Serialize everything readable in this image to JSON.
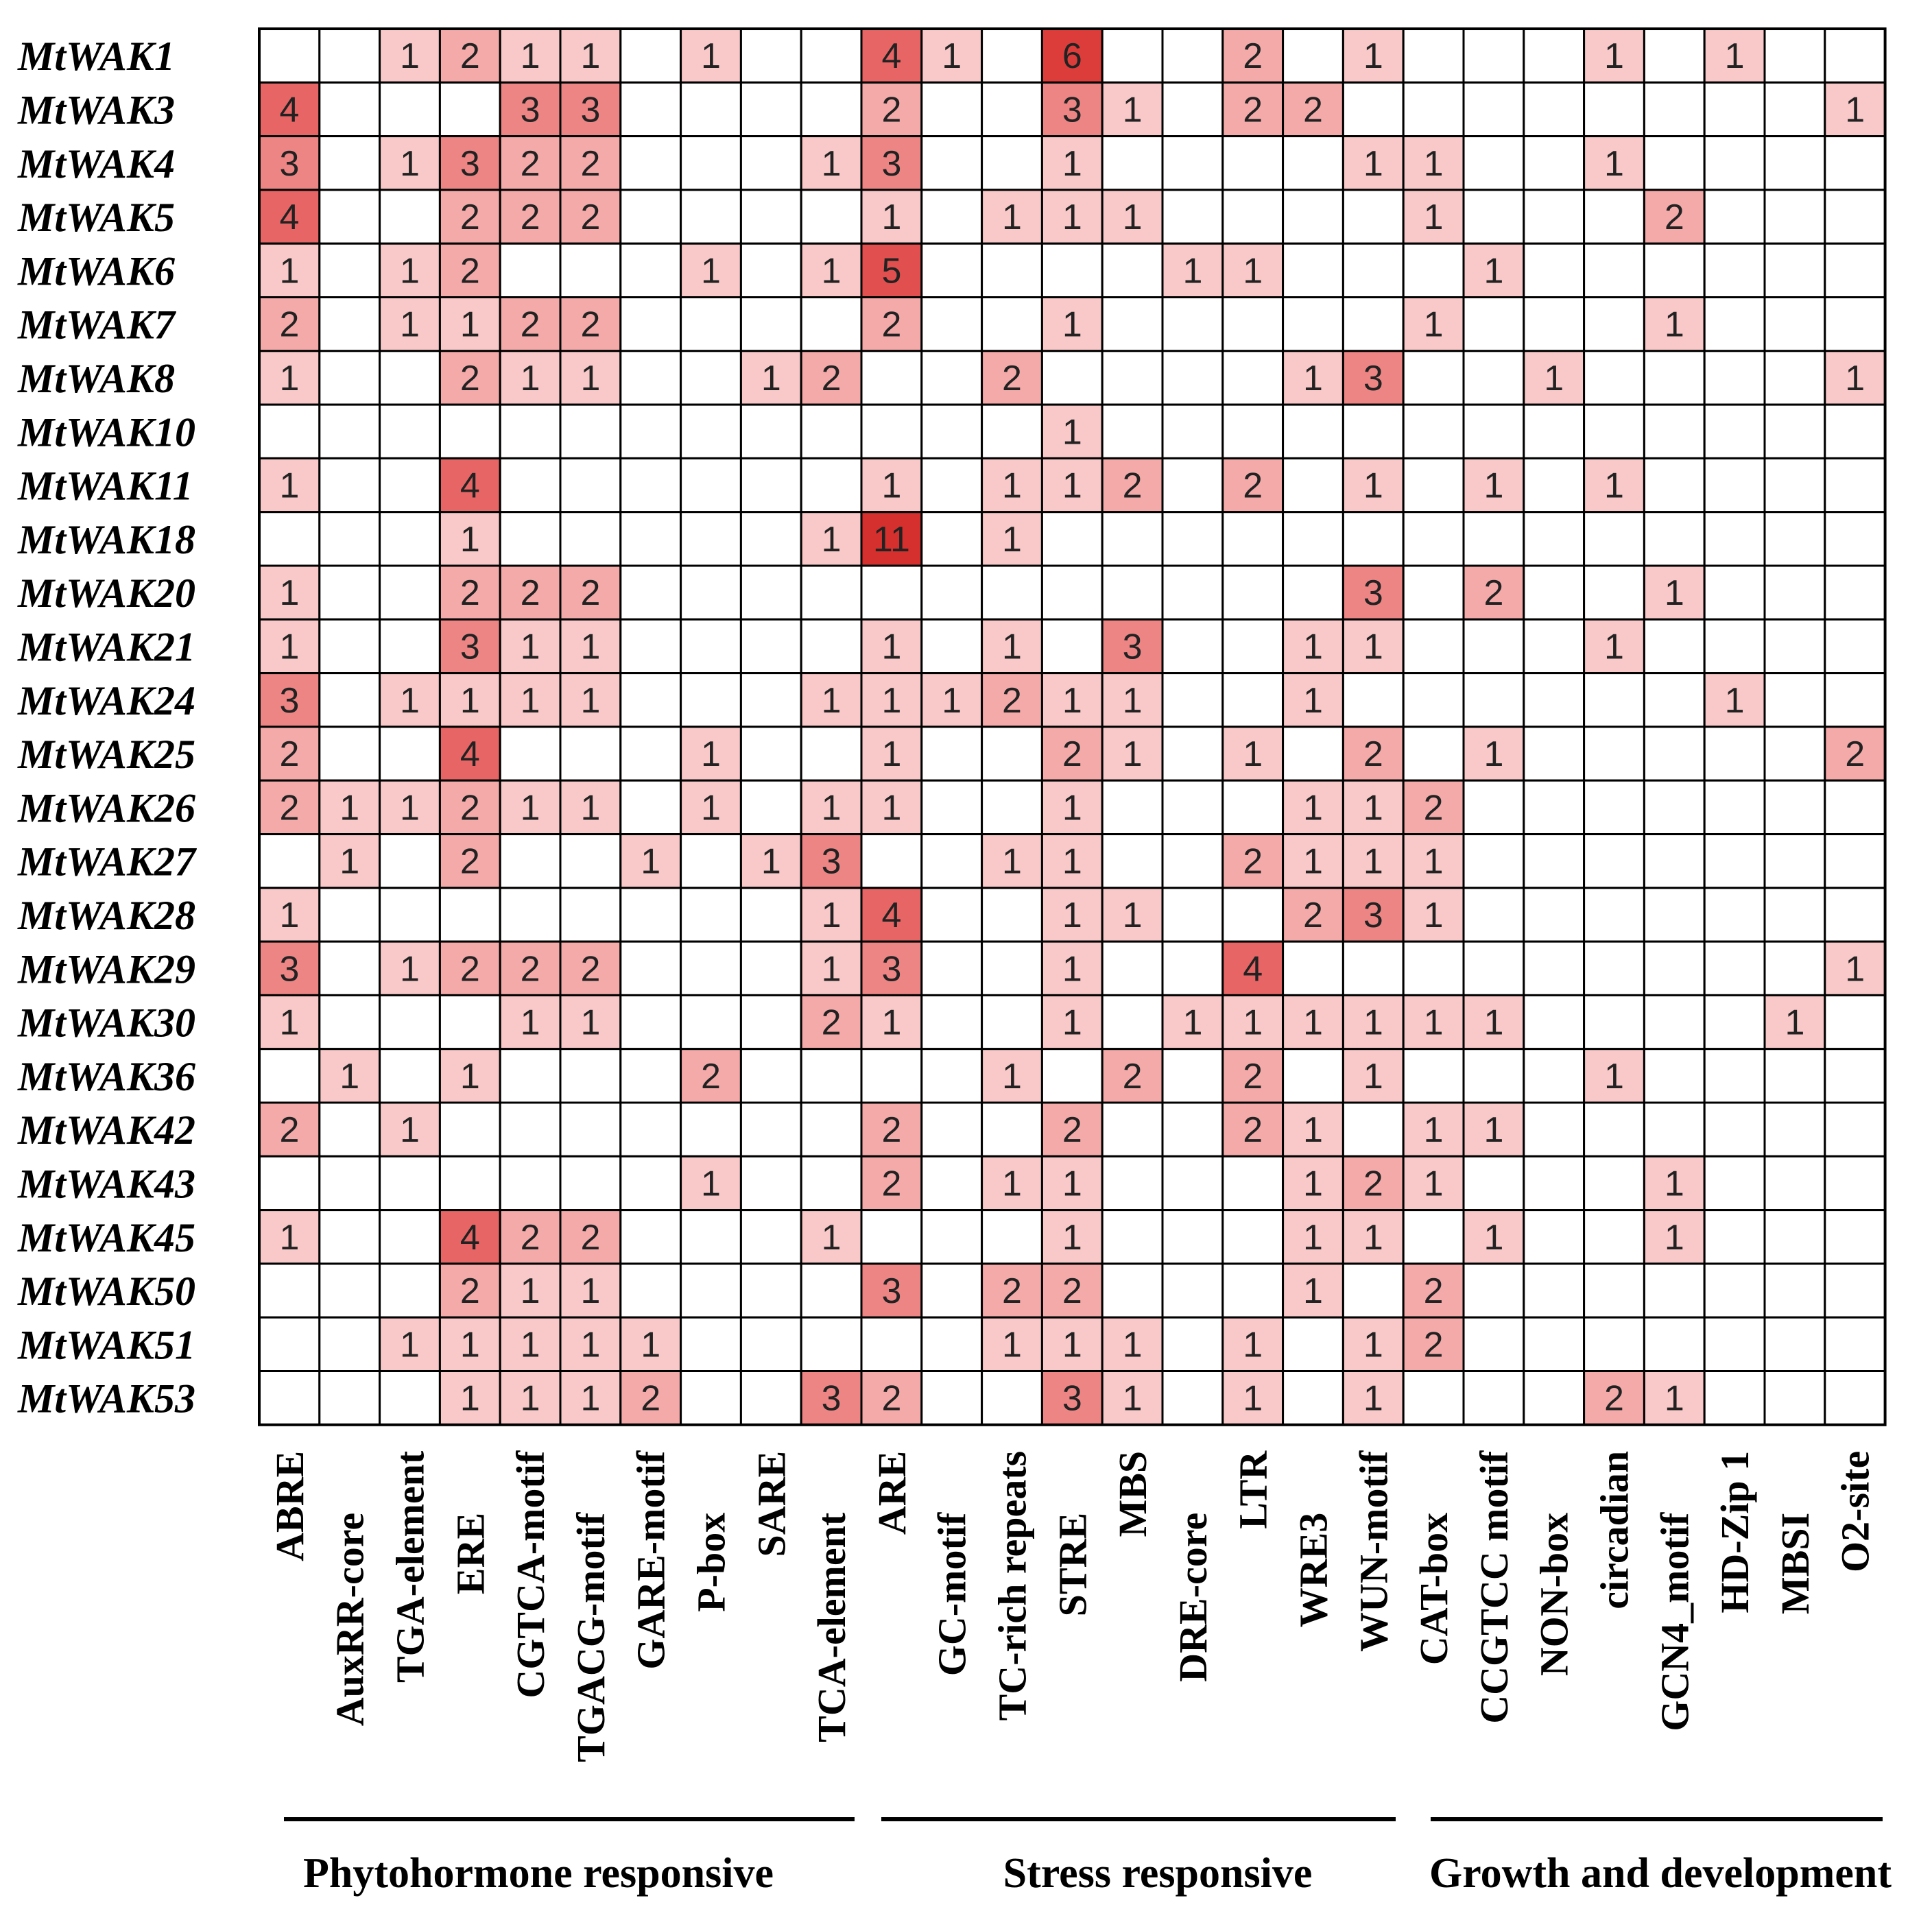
{
  "chart_data": {
    "type": "heatmap",
    "title": "",
    "xlabel": "",
    "ylabel": "",
    "rows": [
      "MtWAK1",
      "MtWAK3",
      "MtWAK4",
      "MtWAK5",
      "MtWAK6",
      "MtWAK7",
      "MtWAK8",
      "MtWAK10",
      "MtWAK11",
      "MtWAK18",
      "MtWAK20",
      "MtWAK21",
      "MtWAK24",
      "MtWAK25",
      "MtWAK26",
      "MtWAK27",
      "MtWAK28",
      "MtWAK29",
      "MtWAK30",
      "MtWAK36",
      "MtWAK42",
      "MtWAK43",
      "MtWAK45",
      "MtWAK50",
      "MtWAK51",
      "MtWAK53"
    ],
    "columns": [
      "ABRE",
      "AuxRR-core",
      "TGA-element",
      "ERE",
      "CGTCA-motif",
      "TGACG-motif",
      "GARE-motif",
      "P-box",
      "SARE",
      "TCA-element",
      "ARE",
      "GC-motif",
      "TC-rich repeats",
      "STRE",
      "MBS",
      "DRE-core",
      "LTR",
      "WRE3",
      "WUN-motif",
      "CAT-box",
      "CCGTCC motif",
      "NON-box",
      "circadian",
      "GCN4_motif",
      "HD-Zip 1",
      "MBSI",
      "O2-site"
    ],
    "values": [
      [
        0,
        0,
        1,
        2,
        1,
        1,
        0,
        1,
        0,
        0,
        4,
        1,
        0,
        6,
        0,
        0,
        2,
        0,
        1,
        0,
        0,
        0,
        1,
        0,
        1,
        0,
        0
      ],
      [
        4,
        0,
        0,
        0,
        3,
        3,
        0,
        0,
        0,
        0,
        2,
        0,
        0,
        3,
        1,
        0,
        2,
        2,
        0,
        0,
        0,
        0,
        0,
        0,
        0,
        0,
        1
      ],
      [
        3,
        0,
        1,
        3,
        2,
        2,
        0,
        0,
        0,
        1,
        3,
        0,
        0,
        1,
        0,
        0,
        0,
        0,
        1,
        1,
        0,
        0,
        1,
        0,
        0,
        0,
        0
      ],
      [
        4,
        0,
        0,
        2,
        2,
        2,
        0,
        0,
        0,
        0,
        1,
        0,
        1,
        1,
        1,
        0,
        0,
        0,
        0,
        1,
        0,
        0,
        0,
        2,
        0,
        0,
        0
      ],
      [
        1,
        0,
        1,
        2,
        0,
        0,
        0,
        1,
        0,
        1,
        5,
        0,
        0,
        0,
        0,
        1,
        1,
        0,
        0,
        0,
        1,
        0,
        0,
        0,
        0,
        0,
        0
      ],
      [
        2,
        0,
        1,
        1,
        2,
        2,
        0,
        0,
        0,
        0,
        2,
        0,
        0,
        1,
        0,
        0,
        0,
        0,
        0,
        1,
        0,
        0,
        0,
        1,
        0,
        0,
        0
      ],
      [
        1,
        0,
        0,
        2,
        1,
        1,
        0,
        0,
        1,
        2,
        0,
        0,
        2,
        0,
        0,
        0,
        0,
        1,
        3,
        0,
        0,
        1,
        0,
        0,
        0,
        0,
        1
      ],
      [
        0,
        0,
        0,
        0,
        0,
        0,
        0,
        0,
        0,
        0,
        0,
        0,
        0,
        1,
        0,
        0,
        0,
        0,
        0,
        0,
        0,
        0,
        0,
        0,
        0,
        0,
        0
      ],
      [
        1,
        0,
        0,
        4,
        0,
        0,
        0,
        0,
        0,
        0,
        1,
        0,
        1,
        1,
        2,
        0,
        2,
        0,
        1,
        0,
        1,
        0,
        1,
        0,
        0,
        0,
        0
      ],
      [
        0,
        0,
        0,
        1,
        0,
        0,
        0,
        0,
        0,
        1,
        11,
        0,
        1,
        0,
        0,
        0,
        0,
        0,
        0,
        0,
        0,
        0,
        0,
        0,
        0,
        0,
        0
      ],
      [
        1,
        0,
        0,
        2,
        2,
        2,
        0,
        0,
        0,
        0,
        0,
        0,
        0,
        0,
        0,
        0,
        0,
        0,
        3,
        0,
        2,
        0,
        0,
        1,
        0,
        0,
        0
      ],
      [
        1,
        0,
        0,
        3,
        1,
        1,
        0,
        0,
        0,
        0,
        1,
        0,
        1,
        0,
        3,
        0,
        0,
        1,
        1,
        0,
        0,
        0,
        1,
        0,
        0,
        0,
        0
      ],
      [
        3,
        0,
        1,
        1,
        1,
        1,
        0,
        0,
        0,
        1,
        1,
        1,
        2,
        1,
        1,
        0,
        0,
        1,
        0,
        0,
        0,
        0,
        0,
        0,
        1,
        0,
        0
      ],
      [
        2,
        0,
        0,
        4,
        0,
        0,
        0,
        1,
        0,
        0,
        1,
        0,
        0,
        2,
        1,
        0,
        1,
        0,
        2,
        0,
        1,
        0,
        0,
        0,
        0,
        0,
        2
      ],
      [
        2,
        1,
        1,
        2,
        1,
        1,
        0,
        1,
        0,
        1,
        1,
        0,
        0,
        1,
        0,
        0,
        0,
        1,
        1,
        2,
        0,
        0,
        0,
        0,
        0,
        0,
        0
      ],
      [
        0,
        1,
        0,
        2,
        0,
        0,
        1,
        0,
        1,
        3,
        0,
        0,
        1,
        1,
        0,
        0,
        2,
        1,
        1,
        1,
        0,
        0,
        0,
        0,
        0,
        0,
        0
      ],
      [
        1,
        0,
        0,
        0,
        0,
        0,
        0,
        0,
        0,
        1,
        4,
        0,
        0,
        1,
        1,
        0,
        0,
        2,
        3,
        1,
        0,
        0,
        0,
        0,
        0,
        0,
        0
      ],
      [
        3,
        0,
        1,
        2,
        2,
        2,
        0,
        0,
        0,
        1,
        3,
        0,
        0,
        1,
        0,
        0,
        4,
        0,
        0,
        0,
        0,
        0,
        0,
        0,
        0,
        0,
        1
      ],
      [
        1,
        0,
        0,
        0,
        1,
        1,
        0,
        0,
        0,
        2,
        1,
        0,
        0,
        1,
        0,
        1,
        1,
        1,
        1,
        1,
        1,
        0,
        0,
        0,
        0,
        1,
        0
      ],
      [
        0,
        1,
        0,
        1,
        0,
        0,
        0,
        2,
        0,
        0,
        0,
        0,
        1,
        0,
        2,
        0,
        2,
        0,
        1,
        0,
        0,
        0,
        1,
        0,
        0,
        0,
        0
      ],
      [
        2,
        0,
        1,
        0,
        0,
        0,
        0,
        0,
        0,
        0,
        2,
        0,
        0,
        2,
        0,
        0,
        2,
        1,
        0,
        1,
        1,
        0,
        0,
        0,
        0,
        0,
        0
      ],
      [
        0,
        0,
        0,
        0,
        0,
        0,
        0,
        1,
        0,
        0,
        2,
        0,
        1,
        1,
        0,
        0,
        0,
        1,
        2,
        1,
        0,
        0,
        0,
        1,
        0,
        0,
        0
      ],
      [
        1,
        0,
        0,
        4,
        2,
        2,
        0,
        0,
        0,
        1,
        0,
        0,
        0,
        1,
        0,
        0,
        0,
        1,
        1,
        0,
        1,
        0,
        0,
        1,
        0,
        0,
        0
      ],
      [
        0,
        0,
        0,
        2,
        1,
        1,
        0,
        0,
        0,
        0,
        3,
        0,
        2,
        2,
        0,
        0,
        0,
        1,
        0,
        2,
        0,
        0,
        0,
        0,
        0,
        0,
        0
      ],
      [
        0,
        0,
        1,
        1,
        1,
        1,
        1,
        0,
        0,
        0,
        0,
        0,
        1,
        1,
        1,
        0,
        1,
        0,
        1,
        2,
        0,
        0,
        0,
        0,
        0,
        0,
        0
      ],
      [
        0,
        0,
        0,
        1,
        1,
        1,
        2,
        0,
        0,
        3,
        2,
        0,
        0,
        3,
        1,
        0,
        1,
        0,
        1,
        0,
        0,
        0,
        2,
        1,
        0,
        0,
        0
      ]
    ],
    "color_scale": {
      "low": "#ffffff",
      "high": "#d6302e"
    },
    "groups": [
      {
        "label": "Phytohormone responsive",
        "start": 0,
        "end": 9
      },
      {
        "label": "Stress responsive",
        "start": 10,
        "end": 18
      },
      {
        "label": "Growth and development",
        "start": 19,
        "end": 26
      }
    ]
  }
}
